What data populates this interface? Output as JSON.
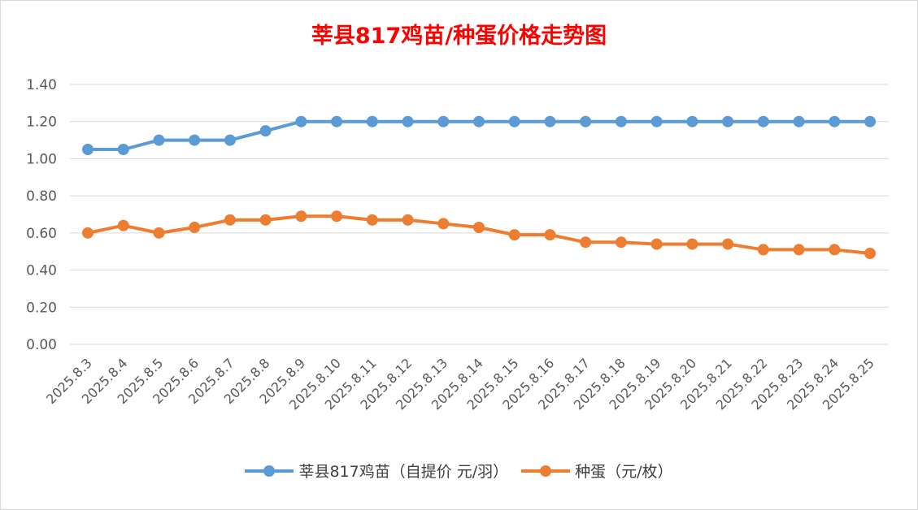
{
  "chart_data": {
    "type": "line",
    "title": "莘县817鸡苗/种蛋价格走势图",
    "categories": [
      "2025.8.3",
      "2025.8.4",
      "2025.8.5",
      "2025.8.6",
      "2025.8.7",
      "2025.8.8",
      "2025.8.9",
      "2025.8.10",
      "2025.8.11",
      "2025.8.12",
      "2025.8.13",
      "2025.8.14",
      "2025.8.15",
      "2025.8.16",
      "2025.8.17",
      "2025.8.18",
      "2025.8.19",
      "2025.8.20",
      "2025.8.21",
      "2025.8.22",
      "2025.8.23",
      "2025.8.24",
      "2025.8.25"
    ],
    "series": [
      {
        "name": "莘县817鸡苗（自提价 元/羽）",
        "color": "#5b9bd5",
        "values": [
          1.05,
          1.05,
          1.1,
          1.1,
          1.1,
          1.15,
          1.2,
          1.2,
          1.2,
          1.2,
          1.2,
          1.2,
          1.2,
          1.2,
          1.2,
          1.2,
          1.2,
          1.2,
          1.2,
          1.2,
          1.2,
          1.2,
          1.2
        ]
      },
      {
        "name": "种蛋（元/枚）",
        "color": "#ed7d31",
        "values": [
          0.6,
          0.64,
          0.6,
          0.63,
          0.67,
          0.67,
          0.69,
          0.69,
          0.67,
          0.67,
          0.65,
          0.63,
          0.59,
          0.59,
          0.55,
          0.55,
          0.54,
          0.54,
          0.54,
          0.51,
          0.51,
          0.51,
          0.49
        ]
      }
    ],
    "yticks": [
      "0.00",
      "0.20",
      "0.40",
      "0.60",
      "0.80",
      "1.00",
      "1.20",
      "1.40"
    ],
    "ylim": [
      0,
      1.4
    ],
    "grid": true,
    "legend": "bottom"
  }
}
